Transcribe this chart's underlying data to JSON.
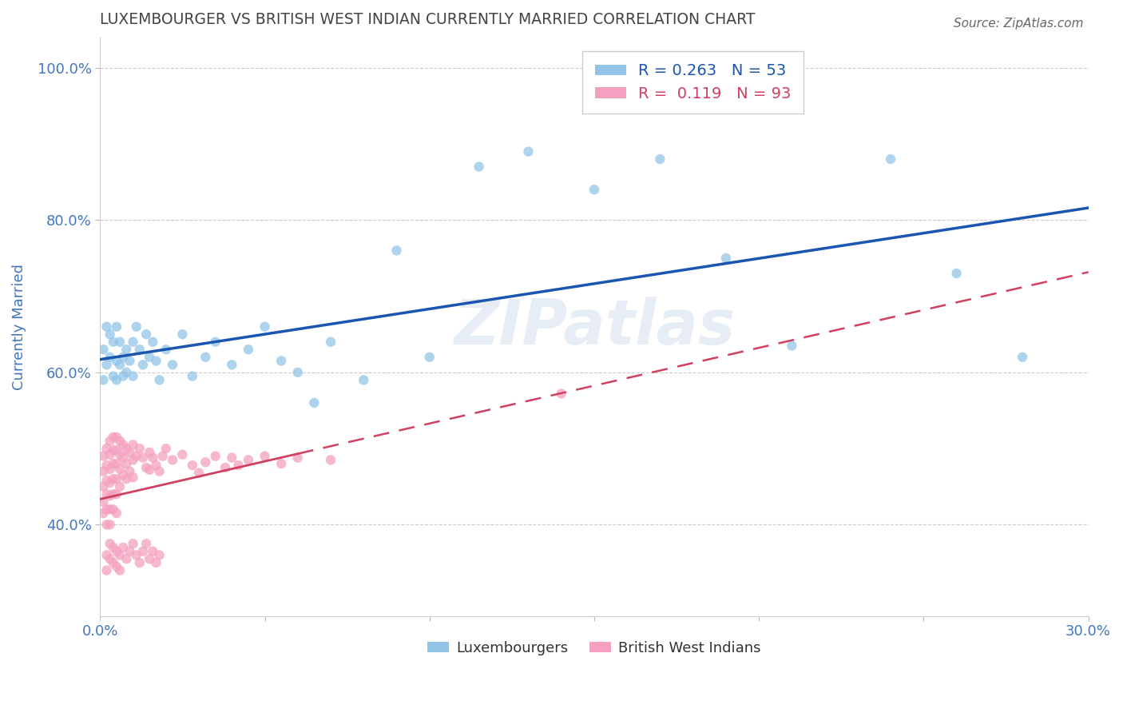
{
  "title": "LUXEMBOURGER VS BRITISH WEST INDIAN CURRENTLY MARRIED CORRELATION CHART",
  "source": "Source: ZipAtlas.com",
  "xlabel": "",
  "ylabel": "Currently Married",
  "xlim": [
    0.0,
    0.3
  ],
  "ylim": [
    0.28,
    1.04
  ],
  "xticks": [
    0.0,
    0.05,
    0.1,
    0.15,
    0.2,
    0.25,
    0.3
  ],
  "xtick_labels": [
    "0.0%",
    "",
    "",
    "",
    "",
    "",
    "30.0%"
  ],
  "yticks": [
    0.4,
    0.6,
    0.8,
    1.0
  ],
  "ytick_labels": [
    "40.0%",
    "60.0%",
    "80.0%",
    "100.0%"
  ],
  "r_lux": 0.263,
  "n_lux": 53,
  "r_bwi": 0.119,
  "n_bwi": 93,
  "color_lux": "#92C5E8",
  "color_bwi": "#F4A0C0",
  "line_color_lux": "#1A56B0",
  "line_color_bwi": "#D04060",
  "watermark": "ZIPatlas",
  "lux_x": [
    0.001,
    0.001,
    0.002,
    0.002,
    0.003,
    0.003,
    0.004,
    0.004,
    0.005,
    0.005,
    0.005,
    0.006,
    0.006,
    0.007,
    0.007,
    0.008,
    0.008,
    0.009,
    0.01,
    0.01,
    0.011,
    0.012,
    0.013,
    0.014,
    0.015,
    0.016,
    0.017,
    0.018,
    0.02,
    0.022,
    0.025,
    0.028,
    0.032,
    0.035,
    0.04,
    0.045,
    0.05,
    0.055,
    0.06,
    0.065,
    0.07,
    0.08,
    0.09,
    0.1,
    0.115,
    0.13,
    0.15,
    0.17,
    0.19,
    0.21,
    0.24,
    0.26,
    0.28
  ],
  "lux_y": [
    0.63,
    0.59,
    0.66,
    0.61,
    0.65,
    0.62,
    0.64,
    0.595,
    0.66,
    0.615,
    0.59,
    0.64,
    0.61,
    0.62,
    0.595,
    0.63,
    0.6,
    0.615,
    0.64,
    0.595,
    0.66,
    0.63,
    0.61,
    0.65,
    0.62,
    0.64,
    0.615,
    0.59,
    0.63,
    0.61,
    0.65,
    0.595,
    0.62,
    0.64,
    0.61,
    0.63,
    0.66,
    0.615,
    0.6,
    0.56,
    0.64,
    0.59,
    0.76,
    0.62,
    0.87,
    0.89,
    0.84,
    0.88,
    0.75,
    0.635,
    0.88,
    0.73,
    0.62
  ],
  "bwi_x": [
    0.001,
    0.001,
    0.001,
    0.001,
    0.001,
    0.002,
    0.002,
    0.002,
    0.002,
    0.002,
    0.002,
    0.003,
    0.003,
    0.003,
    0.003,
    0.003,
    0.003,
    0.003,
    0.004,
    0.004,
    0.004,
    0.004,
    0.004,
    0.004,
    0.005,
    0.005,
    0.005,
    0.005,
    0.005,
    0.005,
    0.006,
    0.006,
    0.006,
    0.006,
    0.007,
    0.007,
    0.007,
    0.008,
    0.008,
    0.008,
    0.009,
    0.009,
    0.01,
    0.01,
    0.01,
    0.011,
    0.012,
    0.013,
    0.014,
    0.015,
    0.015,
    0.016,
    0.017,
    0.018,
    0.019,
    0.02,
    0.022,
    0.025,
    0.028,
    0.03,
    0.032,
    0.035,
    0.038,
    0.04,
    0.042,
    0.045,
    0.05,
    0.055,
    0.06,
    0.07,
    0.002,
    0.002,
    0.003,
    0.003,
    0.004,
    0.004,
    0.005,
    0.005,
    0.006,
    0.006,
    0.007,
    0.008,
    0.009,
    0.01,
    0.011,
    0.012,
    0.013,
    0.014,
    0.015,
    0.016,
    0.017,
    0.018,
    0.14
  ],
  "bwi_y": [
    0.49,
    0.47,
    0.45,
    0.43,
    0.415,
    0.5,
    0.478,
    0.458,
    0.44,
    0.42,
    0.4,
    0.51,
    0.492,
    0.473,
    0.455,
    0.438,
    0.42,
    0.4,
    0.515,
    0.498,
    0.48,
    0.46,
    0.44,
    0.42,
    0.515,
    0.498,
    0.48,
    0.46,
    0.44,
    0.415,
    0.51,
    0.492,
    0.473,
    0.45,
    0.505,
    0.488,
    0.465,
    0.5,
    0.48,
    0.46,
    0.495,
    0.47,
    0.505,
    0.485,
    0.462,
    0.49,
    0.5,
    0.488,
    0.475,
    0.495,
    0.472,
    0.488,
    0.478,
    0.47,
    0.49,
    0.5,
    0.485,
    0.492,
    0.478,
    0.468,
    0.482,
    0.49,
    0.475,
    0.488,
    0.478,
    0.485,
    0.49,
    0.48,
    0.488,
    0.485,
    0.36,
    0.34,
    0.375,
    0.355,
    0.37,
    0.35,
    0.365,
    0.345,
    0.36,
    0.34,
    0.37,
    0.355,
    0.365,
    0.375,
    0.36,
    0.35,
    0.365,
    0.375,
    0.355,
    0.365,
    0.35,
    0.36,
    0.572
  ],
  "background_color": "#FFFFFF",
  "grid_color": "#CCCCCC",
  "title_color": "#444444",
  "tick_color": "#4477BB"
}
